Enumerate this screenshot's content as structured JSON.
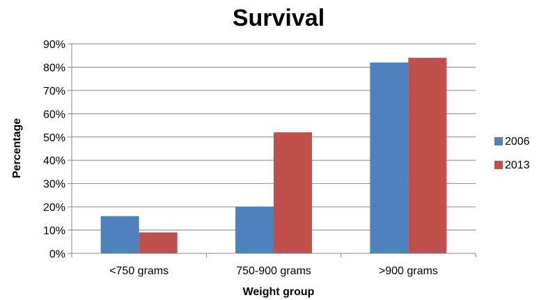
{
  "chart_data": {
    "type": "bar",
    "title": "Survival",
    "xlabel": "Weight group",
    "ylabel": "Percentage",
    "categories": [
      "<750 grams",
      "750-900 grams",
      ">900 grams"
    ],
    "series": [
      {
        "name": "2006",
        "values": [
          16,
          20,
          82
        ],
        "color": "#4F81BD"
      },
      {
        "name": "2013",
        "values": [
          9,
          52,
          84
        ],
        "color": "#C0504D"
      }
    ],
    "ylim": [
      0,
      90
    ],
    "yticks": [
      "0%",
      "10%",
      "20%",
      "30%",
      "40%",
      "50%",
      "60%",
      "70%",
      "80%",
      "90%"
    ],
    "grid": true,
    "legend_position": "right"
  }
}
